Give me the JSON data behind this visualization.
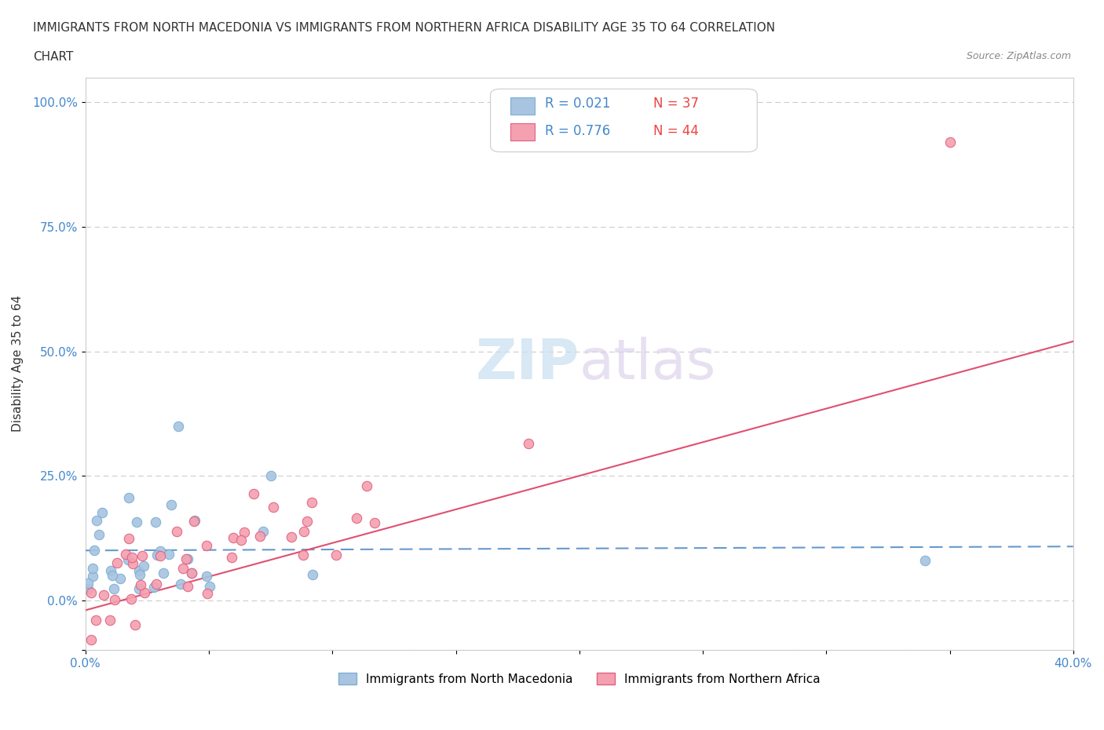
{
  "title_line1": "IMMIGRANTS FROM NORTH MACEDONIA VS IMMIGRANTS FROM NORTHERN AFRICA DISABILITY AGE 35 TO 64 CORRELATION",
  "title_line2": "CHART",
  "source_text": "Source: ZipAtlas.com",
  "xlabel": "",
  "ylabel": "Disability Age 35 to 64",
  "xlim": [
    0.0,
    0.4
  ],
  "ylim": [
    -0.1,
    1.05
  ],
  "ytick_labels": [
    "",
    "0.0%",
    "25.0%",
    "50.0%",
    "75.0%",
    "100.0%"
  ],
  "yticks": [
    -0.1,
    0.0,
    0.25,
    0.5,
    0.75,
    1.0
  ],
  "series1_color": "#a8c4e0",
  "series2_color": "#f4a0b0",
  "series1_edge": "#7bafd4",
  "series2_edge": "#e06080",
  "trendline1_color": "#6699cc",
  "trendline2_color": "#e05070",
  "R1": 0.021,
  "N1": 37,
  "R2": 0.776,
  "N2": 44,
  "legend_R_color": "#4488cc",
  "legend_N_color": "#ee4444",
  "background_color": "#ffffff",
  "watermark_zip_color": "#c8dff0",
  "watermark_atlas_color": "#d8cce8"
}
